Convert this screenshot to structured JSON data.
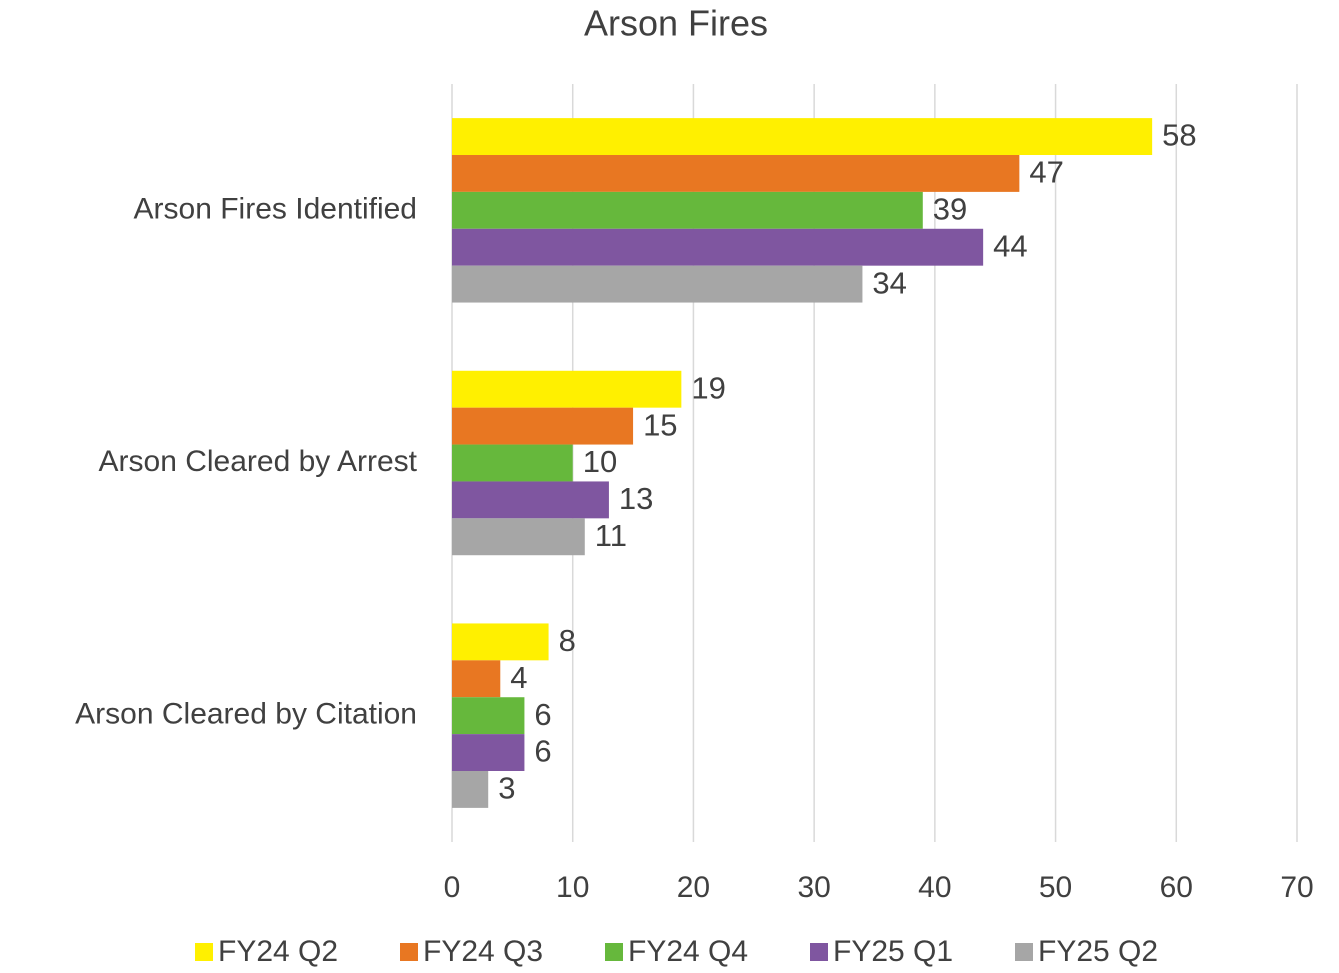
{
  "chart_data": {
    "type": "bar",
    "orientation": "horizontal",
    "title": "Arson Fires",
    "categories": [
      "Arson Fires Identified",
      "Arson Cleared by Arrest",
      "Arson Cleared by Citation"
    ],
    "series": [
      {
        "name": "FY24 Q2",
        "color": "#FFF000",
        "values": [
          58,
          19,
          8
        ]
      },
      {
        "name": "FY24 Q3",
        "color": "#E87722",
        "values": [
          47,
          15,
          4
        ]
      },
      {
        "name": "FY24 Q4",
        "color": "#66B83C",
        "values": [
          39,
          10,
          6
        ]
      },
      {
        "name": "FY25 Q1",
        "color": "#7F56A0",
        "values": [
          44,
          13,
          6
        ]
      },
      {
        "name": "FY25 Q2",
        "color": "#A6A6A6",
        "values": [
          34,
          11,
          3
        ]
      }
    ],
    "xlim": [
      0,
      70
    ],
    "xticks": [
      0,
      10,
      20,
      30,
      40,
      50,
      60,
      70
    ],
    "grid": true,
    "legend": "bottom"
  }
}
